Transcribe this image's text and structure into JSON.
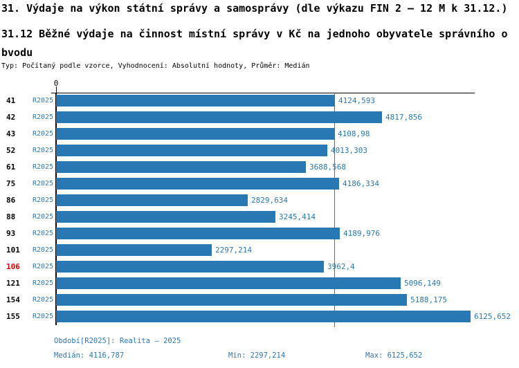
{
  "title": "31. Výdaje na výkon státní správy a samosprávy (dle výkazu FIN 2 – 12 M k 31.12.)",
  "subtitle": "31.12 Běžné výdaje na činnost místní správy v Kč na jednoho obyvatele správního obvodu",
  "meta": "Typ: Počítaný podle vzorce, Vyhodnocení: Absolutní hodnoty, Průměr: Medián",
  "chart_data": {
    "type": "bar",
    "orientation": "horizontal",
    "axis_origin_label": "0",
    "axis_max": 6190,
    "series_label": "R2025",
    "bar_color": "#2878b4",
    "highlight_color": "#e00000",
    "median_value": 4116.787,
    "grid": false,
    "rows": [
      {
        "code": "41",
        "value": 4124.593,
        "value_label": "4124,593",
        "highlight": false
      },
      {
        "code": "42",
        "value": 4817.856,
        "value_label": "4817,856",
        "highlight": false
      },
      {
        "code": "43",
        "value": 4108.98,
        "value_label": "4108,98",
        "highlight": false
      },
      {
        "code": "52",
        "value": 4013.303,
        "value_label": "4013,303",
        "highlight": false
      },
      {
        "code": "61",
        "value": 3688.568,
        "value_label": "3688,568",
        "highlight": false
      },
      {
        "code": "75",
        "value": 4186.334,
        "value_label": "4186,334",
        "highlight": false
      },
      {
        "code": "86",
        "value": 2829.634,
        "value_label": "2829,634",
        "highlight": false
      },
      {
        "code": "88",
        "value": 3245.414,
        "value_label": "3245,414",
        "highlight": false
      },
      {
        "code": "93",
        "value": 4189.976,
        "value_label": "4189,976",
        "highlight": false
      },
      {
        "code": "101",
        "value": 2297.214,
        "value_label": "2297,214",
        "highlight": false
      },
      {
        "code": "106",
        "value": 3962.4,
        "value_label": "3962,4",
        "highlight": true
      },
      {
        "code": "121",
        "value": 5096.149,
        "value_label": "5096,149",
        "highlight": false
      },
      {
        "code": "154",
        "value": 5188.175,
        "value_label": "5188,175",
        "highlight": false
      },
      {
        "code": "155",
        "value": 6125.652,
        "value_label": "6125,652",
        "highlight": false
      }
    ]
  },
  "footer": {
    "period": "Období[R2025]: Realita – 2025",
    "median": "Medián: 4116,787",
    "min": "Min: 2297,214",
    "max": "Max: 6125,652"
  }
}
